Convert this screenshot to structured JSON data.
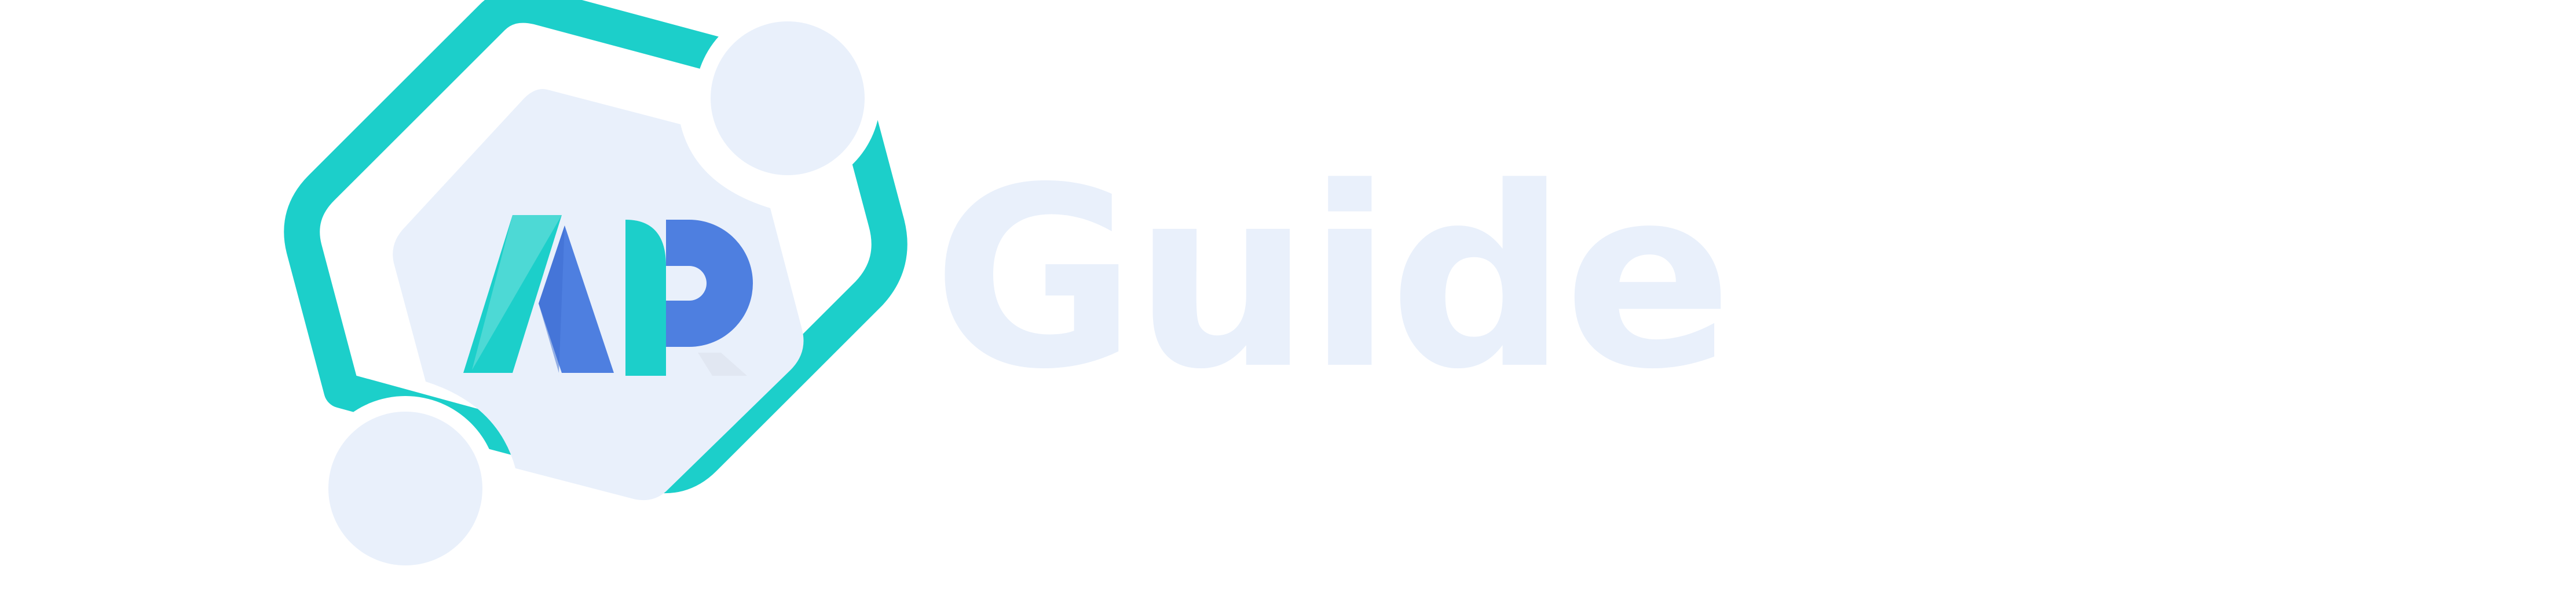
{
  "brand": {
    "monogram": "AP",
    "wordmark": "Guide"
  },
  "colors": {
    "teal": "#1ccfca",
    "blue": "#4e7fe0",
    "pale": "#e9f0fb"
  },
  "icons": {
    "hexagon": "hexagon-ring-icon",
    "node": "circle-node-icon"
  }
}
